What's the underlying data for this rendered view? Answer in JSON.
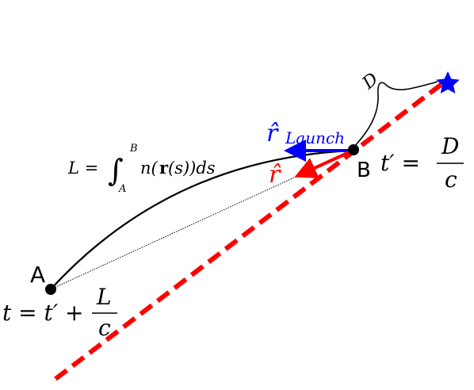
{
  "colors": {
    "red_line": "#ff0000",
    "blue": "#0000ff",
    "black": "#000000"
  },
  "points": {
    "a_label": "A",
    "b_label": "B"
  },
  "labels": {
    "distance": "D",
    "integral_lhs": "L =",
    "integral_sign": "∫",
    "integral_upper": "B",
    "integral_lower": "A",
    "integrand_n": "n(",
    "integrand_r": "r",
    "integrand_rest": "(s))ds",
    "r_hat": "r̂",
    "launch_sub": "Launch",
    "t_prime_eq": "t′ =",
    "frac_D": "D",
    "frac_c": "c",
    "t_eq": "t = t′ +",
    "frac_L": "L",
    "frac_c2": "c"
  },
  "icons": {
    "source": "star-icon"
  }
}
